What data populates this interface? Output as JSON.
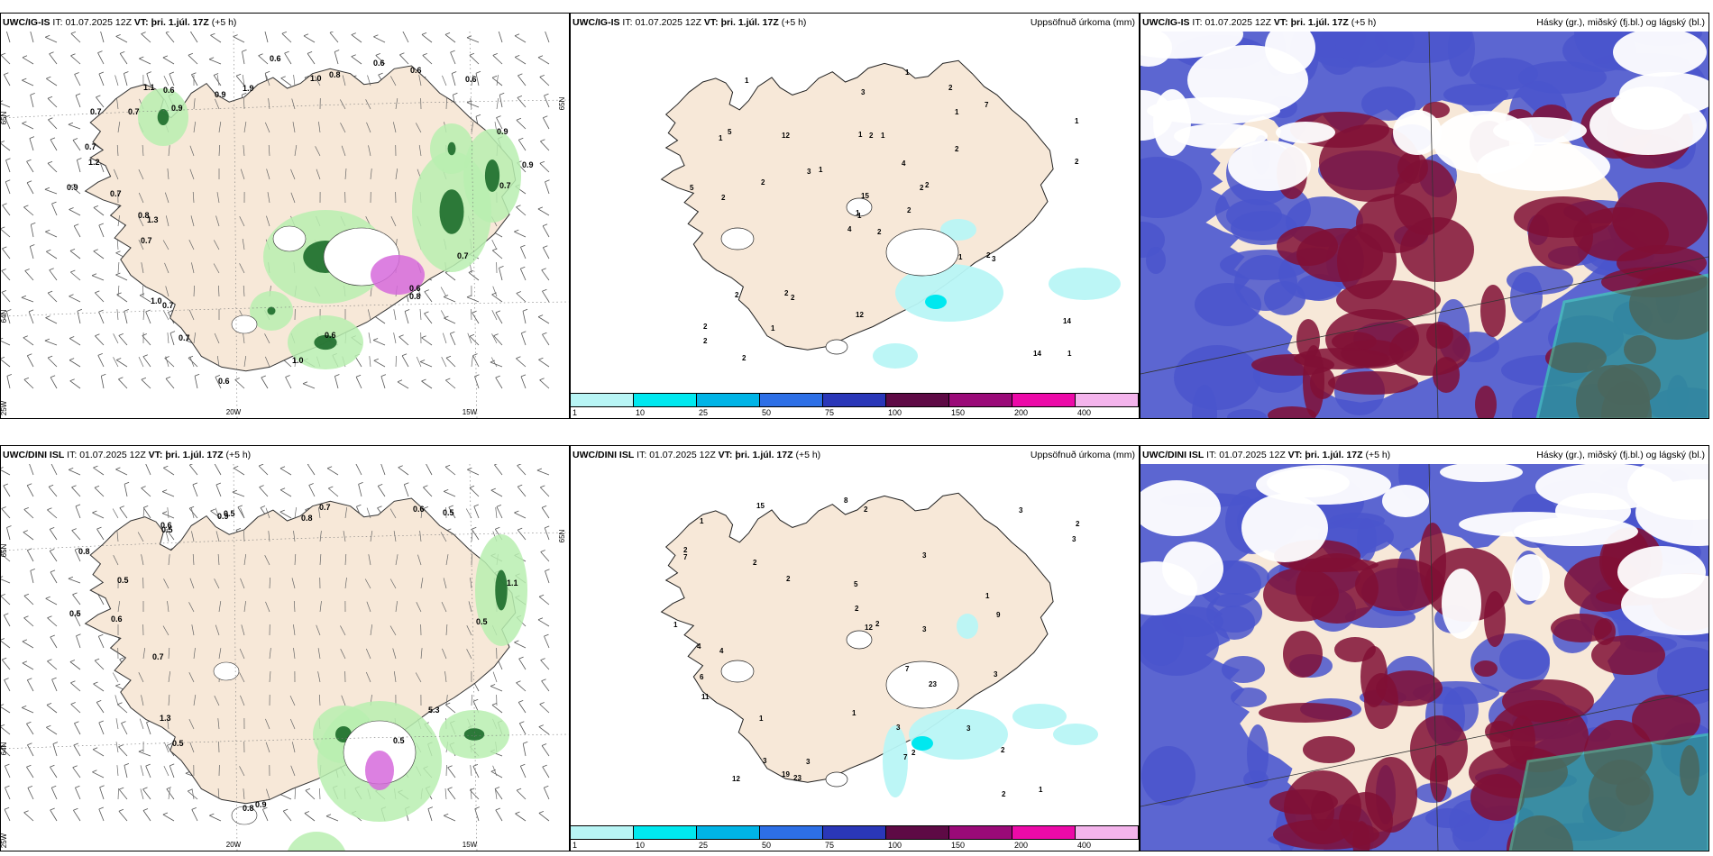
{
  "panels": [
    {
      "id": "ig-wind",
      "model": "UWC/IG-IS",
      "it_label": "IT:",
      "it_value": "01.07.2025 12Z",
      "vt_label": "VT:",
      "vt_value": "þri. 1.júl. 17Z",
      "lead": "(+5 h)",
      "title_right": "",
      "axis_labels": [
        "65N",
        "64N",
        "25W",
        "20W",
        "15W",
        "65N"
      ],
      "values": [
        "0.9",
        "0.7",
        "0.6",
        "1.9",
        "0.8",
        "0.6",
        "0.7",
        "0.8",
        "0.6",
        "1.0",
        "0.8",
        "1.2",
        "1.1",
        "0.9",
        "1.0",
        "0.6",
        "0.9",
        "0.6",
        "1.0",
        "0.7",
        "1.3",
        "0.7",
        "0.7",
        "0.9",
        "0.6",
        "0.6",
        "0.9",
        "0.7",
        "0.6",
        "0.7",
        "0.7",
        "0.7"
      ]
    },
    {
      "id": "ig-precip",
      "model": "UWC/IG-IS",
      "it_label": "IT:",
      "it_value": "01.07.2025 12Z",
      "vt_label": "VT:",
      "vt_value": "þri. 1.júl. 17Z",
      "lead": "(+5 h)",
      "title_right": "Uppsöfnuð úrkoma (mm)",
      "values": [
        "2",
        "1",
        "1",
        "2",
        "2",
        "2",
        "2",
        "1",
        "1",
        "2",
        "1",
        "1",
        "2",
        "1",
        "4",
        "2",
        "2",
        "1",
        "4",
        "2",
        "1",
        "2",
        "1",
        "2",
        "2",
        "3",
        "5",
        "3",
        "5",
        "1",
        "2",
        "1",
        "12",
        "15",
        "12",
        "7",
        "2",
        "14",
        "14",
        "2",
        "1",
        "3",
        "2"
      ],
      "colorbar": {
        "labels": [
          "1",
          "10",
          "25",
          "50",
          "75",
          "100",
          "150",
          "200",
          "400"
        ],
        "colors": [
          "#b8f5f5",
          "#00e8ef",
          "#00b4e6",
          "#2d6fe6",
          "#2a37b8",
          "#5e0a45",
          "#9a0a78",
          "#ec0aa8",
          "#f4b4ec"
        ]
      }
    },
    {
      "id": "ig-cloud",
      "model": "UWC/IG-IS",
      "it_label": "IT:",
      "it_value": "01.07.2025 12Z",
      "vt_label": "VT:",
      "vt_value": "þri. 1.júl. 17Z",
      "lead": "(+5 h)",
      "title_right": "Hásky (gr.), miðský (fj.bl.) og lágský (bl.)"
    },
    {
      "id": "dini-wind",
      "model": "UWC/DINI ISL",
      "it_label": "IT:",
      "it_value": "01.07.2025 12Z",
      "vt_label": "VT:",
      "vt_value": "þri. 1.júl. 17Z",
      "lead": "(+5 h)",
      "title_right": "",
      "axis_labels": [
        "65N",
        "64N",
        "25W",
        "20W",
        "15W",
        "65N"
      ],
      "values": [
        "0.5",
        "0.8",
        "0.6",
        "0.9",
        "0.7",
        "0.5",
        "0.5",
        "0.5",
        "0.8",
        "1.3",
        "0.6",
        "0.5",
        "0.5",
        "0.5",
        "0.8",
        "0.6",
        "1.1",
        "5.3",
        "0.9",
        "0.5",
        "0.7"
      ]
    },
    {
      "id": "dini-precip",
      "model": "UWC/DINI ISL",
      "it_label": "IT:",
      "it_value": "01.07.2025 12Z",
      "vt_label": "VT:",
      "vt_value": "þri. 1.júl. 17Z",
      "lead": "(+5 h)",
      "title_right": "Uppsöfnuð úrkoma (mm)",
      "values": [
        "1",
        "2",
        "1",
        "2",
        "2",
        "1",
        "4",
        "3",
        "5",
        "3",
        "2",
        "3",
        "8",
        "7",
        "2",
        "1",
        "2",
        "4",
        "7",
        "1",
        "3",
        "2",
        "3",
        "2",
        "3",
        "12",
        "23",
        "15",
        "23",
        "7",
        "6",
        "2",
        "3",
        "12",
        "19",
        "11",
        "9",
        "1",
        "3",
        "2",
        "3"
      ],
      "colorbar": {
        "labels": [
          "1",
          "10",
          "25",
          "50",
          "75",
          "100",
          "150",
          "200",
          "400"
        ],
        "colors": [
          "#b8f5f5",
          "#00e8ef",
          "#00b4e6",
          "#2d6fe6",
          "#2a37b8",
          "#5e0a45",
          "#9a0a78",
          "#ec0aa8",
          "#f4b4ec"
        ]
      }
    },
    {
      "id": "dini-cloud",
      "model": "UWC/DINI ISL",
      "it_label": "IT:",
      "it_value": "01.07.2025 12Z",
      "vt_label": "VT:",
      "vt_value": "þri. 1.júl. 17Z",
      "lead": "(+5 h)",
      "title_right": "Hásky (gr.), miðský (fj.bl.) og lágský (bl.)"
    }
  ],
  "colors": {
    "land": "#f7e8d8",
    "sea": "#ffffff",
    "light_green": "#b9efb0",
    "dark_green": "#1c6b2a",
    "magenta": "#d66adc",
    "high_cloud": "#1fae7e",
    "mid_cloud": "#800f35",
    "low_cloud": "#4a55cc"
  }
}
